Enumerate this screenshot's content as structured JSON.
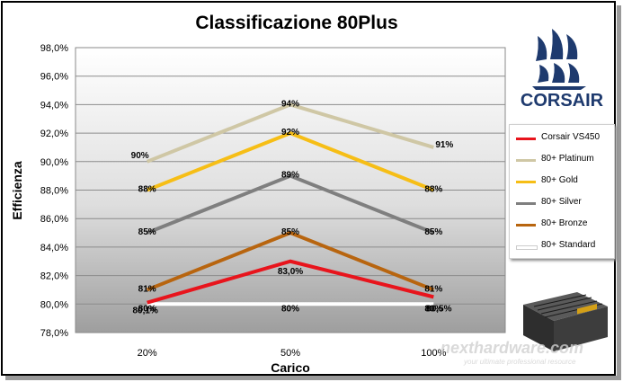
{
  "chart_data": {
    "type": "line",
    "title": "Classificazione 80Plus",
    "xlabel": "Carico",
    "ylabel": "Efficienza",
    "categories": [
      "20%",
      "50%",
      "100%"
    ],
    "ylim": [
      78.0,
      98.0
    ],
    "yticks": [
      "78,0%",
      "80,0%",
      "82,0%",
      "84,0%",
      "86,0%",
      "88,0%",
      "90,0%",
      "92,0%",
      "94,0%",
      "96,0%",
      "98,0%"
    ],
    "ytick_values": [
      78,
      80,
      82,
      84,
      86,
      88,
      90,
      92,
      94,
      96,
      98
    ],
    "grid": true,
    "legend_position": "right",
    "series": [
      {
        "name": "Corsair VS450",
        "color": "#e8141c",
        "values": [
          80.1,
          83.0,
          80.5
        ],
        "labels": [
          "80,1%",
          "83,0%",
          "80,5%"
        ]
      },
      {
        "name": "80+ Platinum",
        "color": "#cfc7a5",
        "values": [
          90,
          94,
          91
        ],
        "labels": [
          "90%",
          "94%",
          "91%"
        ]
      },
      {
        "name": "80+ Gold",
        "color": "#f6be16",
        "values": [
          88,
          92,
          88
        ],
        "labels": [
          "88%",
          "92%",
          "88%"
        ]
      },
      {
        "name": "80+ Silver",
        "color": "#7f7f7f",
        "values": [
          85,
          89,
          85
        ],
        "labels": [
          "85%",
          "89%",
          "85%"
        ]
      },
      {
        "name": "80+ Bronze",
        "color": "#b8650f",
        "values": [
          81,
          85,
          81
        ],
        "labels": [
          "81%",
          "85%",
          "81%"
        ]
      },
      {
        "name": "80+ Standard",
        "color": "#ffffff",
        "values": [
          80,
          80,
          80
        ],
        "labels": [
          "80%",
          "80%",
          "80%"
        ]
      }
    ]
  },
  "logo": {
    "brand": "CORSAIR"
  },
  "watermark": {
    "site": "nexthardware.com",
    "tagline": "your ultimate professional resource"
  }
}
